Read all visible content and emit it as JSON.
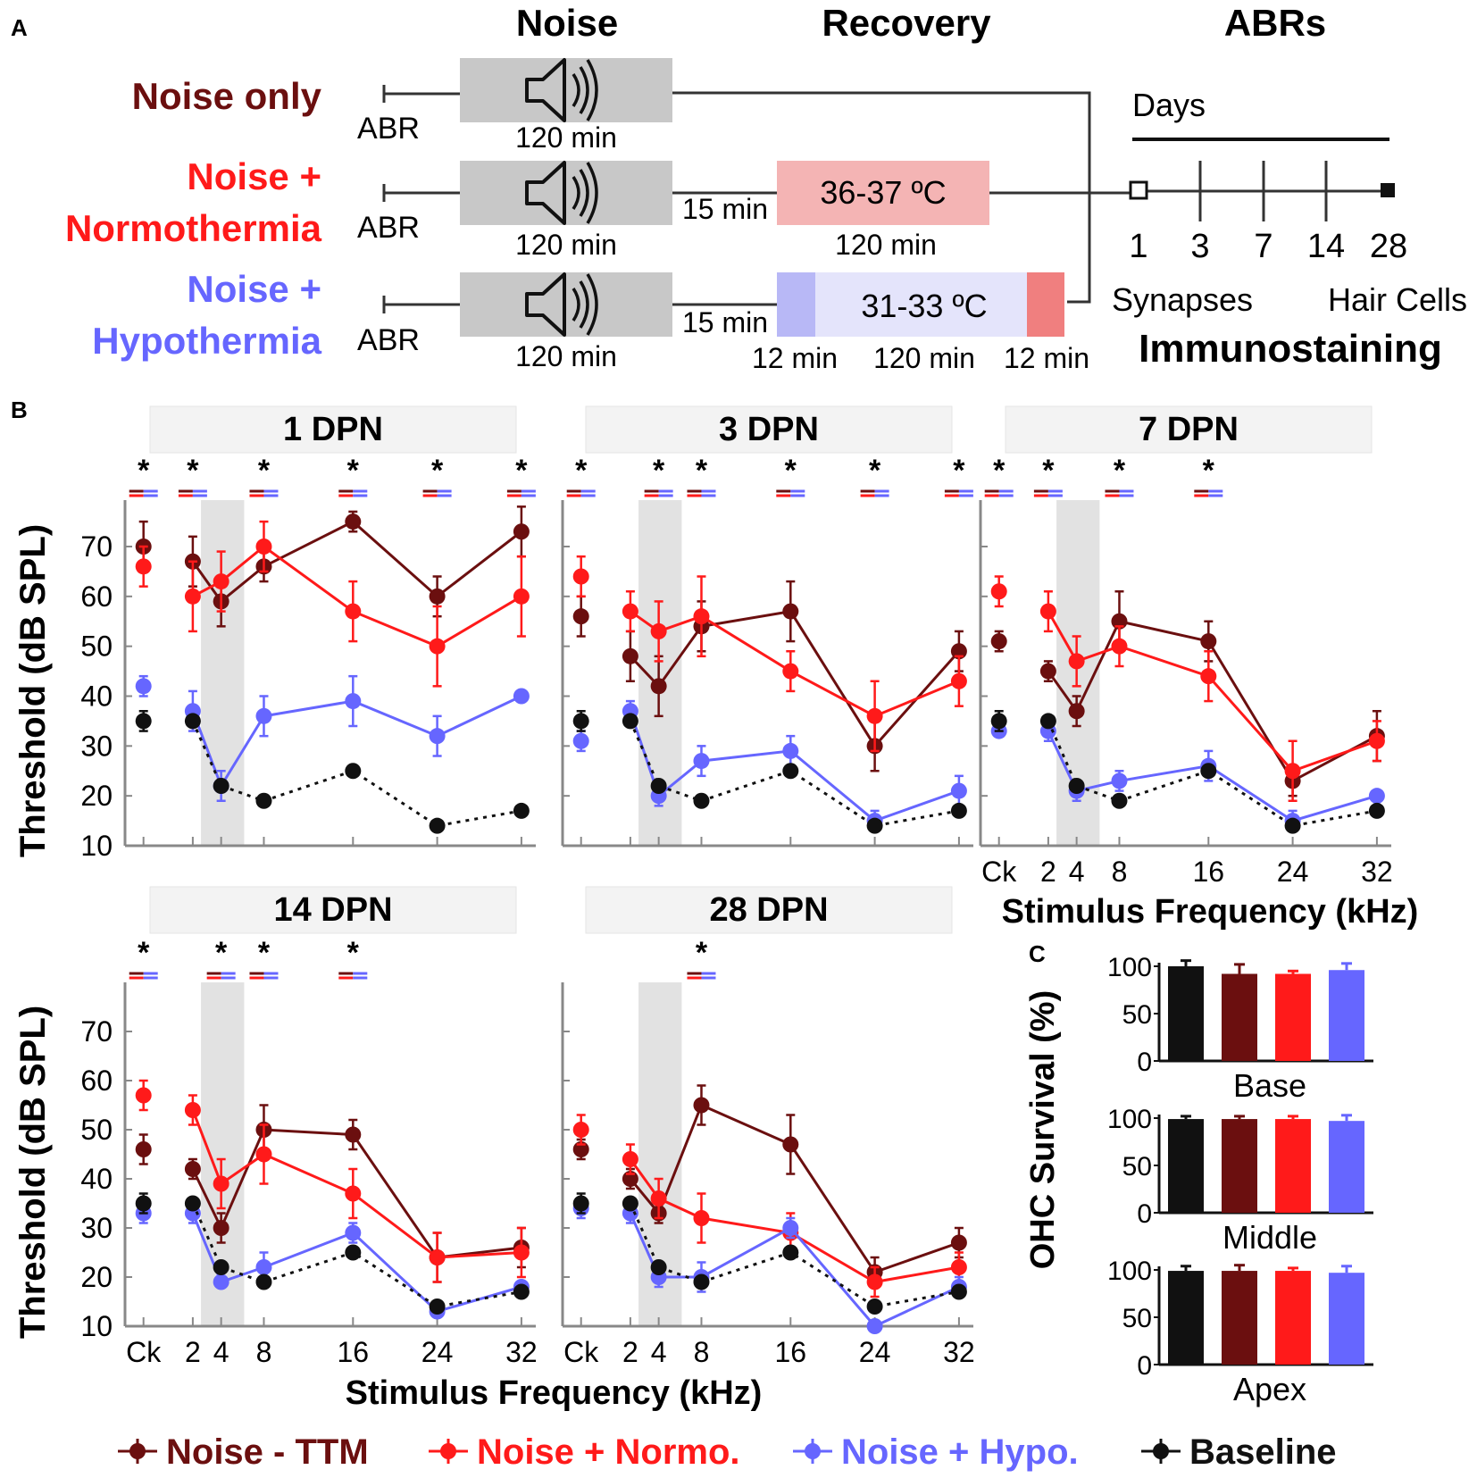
{
  "panel_letters": {
    "a": "A",
    "b": "B",
    "c": "C"
  },
  "protocol": {
    "col_noise": "Noise",
    "col_recovery": "Recovery",
    "col_abrs": "ABRs",
    "groups": [
      {
        "label_lines": [
          "Noise only"
        ],
        "color": "#6b0f0f"
      },
      {
        "label_lines": [
          "Noise +",
          "Normothermia"
        ],
        "color": "#ff1a1a"
      },
      {
        "label_lines": [
          "Noise +",
          "Hypothermia"
        ],
        "color": "#6666ff"
      }
    ],
    "abr_label": "ABR",
    "noise_duration": "120 min",
    "gap_label": "15 min",
    "normo_temp": "36-37 ºC",
    "normo_duration": "120 min",
    "hypo_temp": "31-33 ºC",
    "hypo_durations": [
      "12 min",
      "120 min",
      "12 min"
    ],
    "days_label": "Days",
    "day_ticks": [
      "1",
      "3",
      "7",
      "14",
      "28"
    ],
    "synapses_label": "Synapses",
    "hair_cells_label": "Hair Cells",
    "immuno_label": "Immunostaining"
  },
  "colors": {
    "ttm": "#6b0f0f",
    "normo": "#ff1a1a",
    "hypo": "#6666ff",
    "baseline": "#111111",
    "noise_box": "#c8c8c8",
    "normo_box": "#f4b4b4",
    "hypo_box": "#e4e4fb",
    "hypo_edge_left": "#b8b8f6",
    "hypo_edge_right": "#f07f7f",
    "shade": "#e2e2e2"
  },
  "chart_data": [
    {
      "type": "line",
      "title": "1 DPN",
      "ylabel": "Threshold (dB SPL)",
      "xlabel": "Stimulus Frequency (kHz)",
      "categories": [
        "Ck",
        "2",
        "4",
        "8",
        "16",
        "24",
        "32"
      ],
      "ylim": [
        10,
        80
      ],
      "yticks": [
        10,
        20,
        30,
        40,
        50,
        60,
        70
      ],
      "series": [
        {
          "name": "Noise - TTM",
          "values": [
            70,
            67,
            59,
            66,
            75,
            60,
            73
          ],
          "errors": [
            5,
            5,
            5,
            3,
            2,
            4,
            5
          ]
        },
        {
          "name": "Noise + Normo.",
          "values": [
            66,
            60,
            63,
            70,
            57,
            50,
            60
          ],
          "errors": [
            4,
            7,
            6,
            5,
            6,
            8,
            8
          ]
        },
        {
          "name": "Noise + Hypo.",
          "values": [
            42,
            37,
            22,
            36,
            39,
            32,
            40
          ],
          "errors": [
            2,
            4,
            3,
            4,
            5,
            4,
            1
          ]
        },
        {
          "name": "Baseline",
          "values": [
            35,
            35,
            22,
            19,
            25,
            14,
            17
          ],
          "errors": [
            2,
            1,
            1,
            1,
            1,
            1,
            1
          ]
        }
      ],
      "significance": [
        {
          "category": "Ck",
          "marker": "*"
        },
        {
          "category": "2",
          "marker": "*"
        },
        {
          "category": "8",
          "marker": "*"
        },
        {
          "category": "16",
          "marker": "*"
        },
        {
          "category": "24",
          "marker": "*"
        },
        {
          "category": "32",
          "marker": "*"
        }
      ]
    },
    {
      "type": "line",
      "title": "3 DPN",
      "categories": [
        "Ck",
        "2",
        "4",
        "8",
        "16",
        "24",
        "32"
      ],
      "ylim": [
        10,
        80
      ],
      "series": [
        {
          "name": "Noise - TTM",
          "values": [
            56,
            48,
            42,
            54,
            57,
            30,
            49
          ],
          "errors": [
            4,
            5,
            6,
            5,
            6,
            5,
            4
          ]
        },
        {
          "name": "Noise + Normo.",
          "values": [
            64,
            57,
            53,
            56,
            45,
            36,
            43
          ],
          "errors": [
            4,
            4,
            6,
            8,
            4,
            7,
            5
          ]
        },
        {
          "name": "Noise + Hypo.",
          "values": [
            31,
            37,
            20,
            27,
            29,
            15,
            21
          ],
          "errors": [
            2,
            2,
            2,
            3,
            3,
            2,
            3
          ]
        },
        {
          "name": "Baseline",
          "values": [
            35,
            35,
            22,
            19,
            25,
            14,
            17
          ],
          "errors": [
            2,
            1,
            1,
            1,
            1,
            1,
            1
          ]
        }
      ],
      "significance": [
        {
          "category": "Ck",
          "marker": "*"
        },
        {
          "category": "4",
          "marker": "*"
        },
        {
          "category": "8",
          "marker": "*"
        },
        {
          "category": "16",
          "marker": "*"
        },
        {
          "category": "24",
          "marker": "*"
        },
        {
          "category": "32",
          "marker": "*"
        }
      ]
    },
    {
      "type": "line",
      "title": "7 DPN",
      "xlabel": "Stimulus Frequency (kHz)",
      "categories": [
        "Ck",
        "2",
        "4",
        "8",
        "16",
        "24",
        "32"
      ],
      "ylim": [
        10,
        80
      ],
      "series": [
        {
          "name": "Noise - TTM",
          "values": [
            51,
            45,
            37,
            55,
            51,
            23,
            32
          ],
          "errors": [
            2,
            2,
            3,
            6,
            4,
            3,
            5
          ]
        },
        {
          "name": "Noise + Normo.",
          "values": [
            61,
            57,
            47,
            50,
            44,
            25,
            31
          ],
          "errors": [
            3,
            4,
            5,
            4,
            5,
            6,
            4
          ]
        },
        {
          "name": "Noise + Hypo.",
          "values": [
            33,
            33,
            21,
            23,
            26,
            15,
            20
          ],
          "errors": [
            1,
            2,
            2,
            2,
            3,
            2,
            1
          ]
        },
        {
          "name": "Baseline",
          "values": [
            35,
            35,
            22,
            19,
            25,
            14,
            17
          ],
          "errors": [
            2,
            1,
            1,
            1,
            1,
            1,
            1
          ]
        }
      ],
      "significance": [
        {
          "category": "Ck",
          "marker": "*"
        },
        {
          "category": "2",
          "marker": "*"
        },
        {
          "category": "8",
          "marker": "*"
        },
        {
          "category": "16",
          "marker": "*"
        }
      ]
    },
    {
      "type": "line",
      "title": "14 DPN",
      "ylabel": "Threshold (dB SPL)",
      "categories": [
        "Ck",
        "2",
        "4",
        "8",
        "16",
        "24",
        "32"
      ],
      "ylim": [
        10,
        80
      ],
      "series": [
        {
          "name": "Noise - TTM",
          "values": [
            46,
            42,
            30,
            50,
            49,
            24,
            26
          ],
          "errors": [
            3,
            2,
            3,
            5,
            3,
            5,
            4
          ]
        },
        {
          "name": "Noise + Normo.",
          "values": [
            57,
            54,
            39,
            45,
            37,
            24,
            25
          ],
          "errors": [
            3,
            3,
            5,
            6,
            5,
            5,
            5
          ]
        },
        {
          "name": "Noise + Hypo.",
          "values": [
            33,
            33,
            19,
            22,
            29,
            13,
            18
          ],
          "errors": [
            2,
            2,
            1,
            3,
            2,
            1,
            1
          ]
        },
        {
          "name": "Baseline",
          "values": [
            35,
            35,
            22,
            19,
            25,
            14,
            17
          ],
          "errors": [
            2,
            1,
            1,
            1,
            1,
            1,
            1
          ]
        }
      ],
      "significance": [
        {
          "category": "Ck",
          "marker": "*"
        },
        {
          "category": "4",
          "marker": "*"
        },
        {
          "category": "8",
          "marker": "*"
        },
        {
          "category": "16",
          "marker": "*"
        }
      ]
    },
    {
      "type": "line",
      "title": "28 DPN",
      "categories": [
        "Ck",
        "2",
        "4",
        "8",
        "16",
        "24",
        "32"
      ],
      "ylim": [
        10,
        80
      ],
      "series": [
        {
          "name": "Noise - TTM",
          "values": [
            46,
            40,
            33,
            55,
            47,
            21,
            27
          ],
          "errors": [
            2,
            2,
            2,
            4,
            6,
            3,
            3
          ]
        },
        {
          "name": "Noise + Normo.",
          "values": [
            50,
            44,
            36,
            32,
            29,
            19,
            22
          ],
          "errors": [
            3,
            3,
            4,
            5,
            4,
            3,
            3
          ]
        },
        {
          "name": "Noise + Hypo.",
          "values": [
            34,
            33,
            20,
            20,
            30,
            10,
            18
          ],
          "errors": [
            2,
            2,
            2,
            3,
            2,
            1,
            2
          ]
        },
        {
          "name": "Baseline",
          "values": [
            35,
            35,
            22,
            19,
            25,
            14,
            17
          ],
          "errors": [
            2,
            1,
            1,
            1,
            1,
            1,
            1
          ]
        }
      ],
      "significance": [
        {
          "category": "8",
          "marker": "*"
        }
      ]
    },
    {
      "type": "bar",
      "ylabel": "OHC Survival (%)",
      "regions": [
        "Base",
        "Middle",
        "Apex"
      ],
      "series_names": [
        "Baseline",
        "Noise - TTM",
        "Noise + Normo.",
        "Noise + Hypo."
      ],
      "ylim": [
        0,
        100
      ],
      "yticks": [
        0,
        50,
        100
      ],
      "values": [
        [
          100,
          92,
          92,
          96
        ],
        [
          99,
          99,
          99,
          97
        ],
        [
          99,
          99,
          99,
          97
        ]
      ],
      "errors": [
        [
          6,
          10,
          3,
          7
        ],
        [
          3,
          3,
          3,
          6
        ],
        [
          5,
          6,
          3,
          7
        ]
      ]
    }
  ],
  "legend": [
    {
      "label": "Noise - TTM",
      "color": "#6b0f0f"
    },
    {
      "label": "Noise + Normo.",
      "color": "#ff1a1a"
    },
    {
      "label": "Noise + Hypo.",
      "color": "#6666ff"
    },
    {
      "label": "Baseline",
      "color": "#111111"
    }
  ]
}
